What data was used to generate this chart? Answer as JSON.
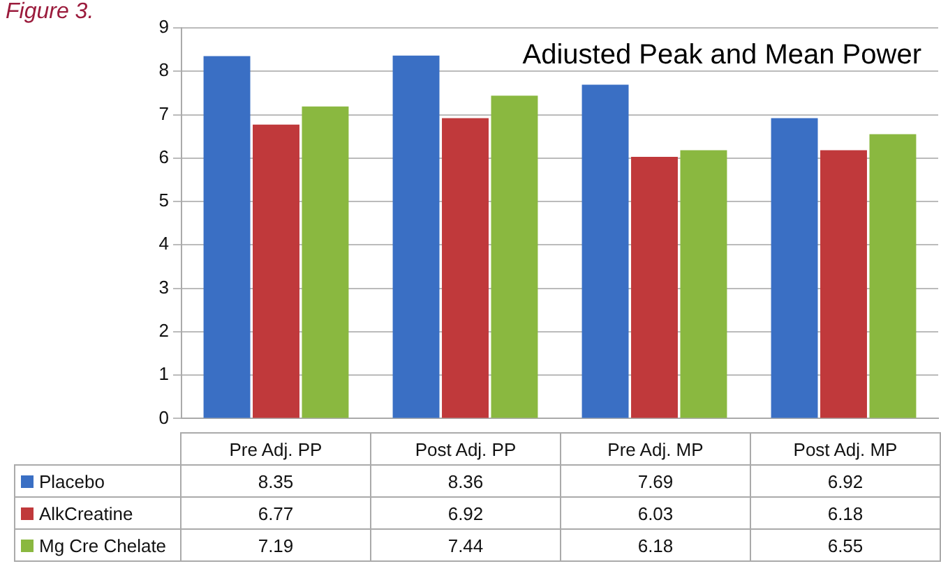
{
  "chart_data": {
    "type": "bar",
    "title": "Adiusted Peak and Mean Power",
    "annotations": [
      "Figure 3."
    ],
    "categories": [
      "Pre Adj. PP",
      "Post Adj. PP",
      "Pre Adj. MP",
      "Post Adj. MP"
    ],
    "series": [
      {
        "name": "Placebo",
        "color": "#3a6fc4",
        "values": [
          8.35,
          8.36,
          7.69,
          6.92
        ]
      },
      {
        "name": "AlkCreatine",
        "color": "#c0393b",
        "values": [
          6.77,
          6.92,
          6.03,
          6.18
        ]
      },
      {
        "name": "Mg Cre Chelate",
        "color": "#8ab840",
        "values": [
          7.19,
          7.44,
          6.18,
          6.55
        ]
      }
    ],
    "ylim": [
      0,
      9
    ],
    "yticks": [
      0,
      1,
      2,
      3,
      4,
      5,
      6,
      7,
      8,
      9
    ],
    "grid": "y",
    "legend": "bottom",
    "data_labels": true
  }
}
